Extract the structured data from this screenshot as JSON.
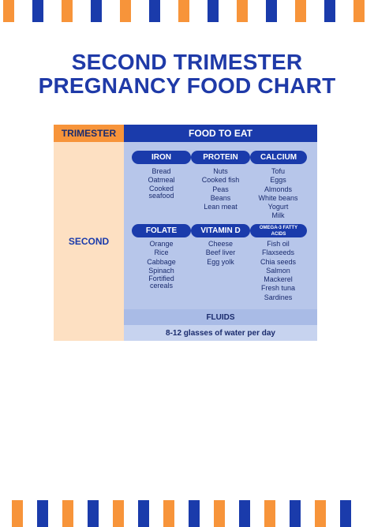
{
  "colors": {
    "orange": "#f7943a",
    "navy": "#1a3bab",
    "light_blue": "#b7c6ea",
    "peach": "#fde0c2"
  },
  "title": {
    "line1": "SECOND TRIMESTER",
    "line2": "PREGNANCY FOOD CHART"
  },
  "table": {
    "header_trimester": "TRIMESTER",
    "header_food": "FOOD TO EAT",
    "trimester": "SECOND",
    "groups": [
      {
        "name": "IRON",
        "items": [
          "Bread",
          "Oatmeal",
          "Cooked seafood"
        ]
      },
      {
        "name": "PROTEIN",
        "items": [
          "Nuts",
          "Cooked fish",
          "Peas",
          "Beans",
          "Lean meat"
        ]
      },
      {
        "name": "CALCIUM",
        "items": [
          "Tofu",
          "Eggs",
          "Almonds",
          "White beans",
          "Yogurt",
          "Milk"
        ]
      },
      {
        "name": "FOLATE",
        "items": [
          "Orange",
          "Rice",
          "Cabbage",
          "Spinach",
          "Fortified cereals"
        ]
      },
      {
        "name": "VITAMIN D",
        "items": [
          "Cheese",
          "Beef liver",
          "Egg yolk"
        ]
      },
      {
        "name": "OMEGA-3 FATTY ACIDS",
        "items": [
          "Fish oil",
          "Flaxseeds",
          "Chia seeds",
          "Salmon",
          "Mackerel",
          "Fresh tuna",
          "Sardines"
        ]
      }
    ],
    "fluids_header": "FLUIDS",
    "fluids_value": "8-12 glasses of water per day"
  }
}
